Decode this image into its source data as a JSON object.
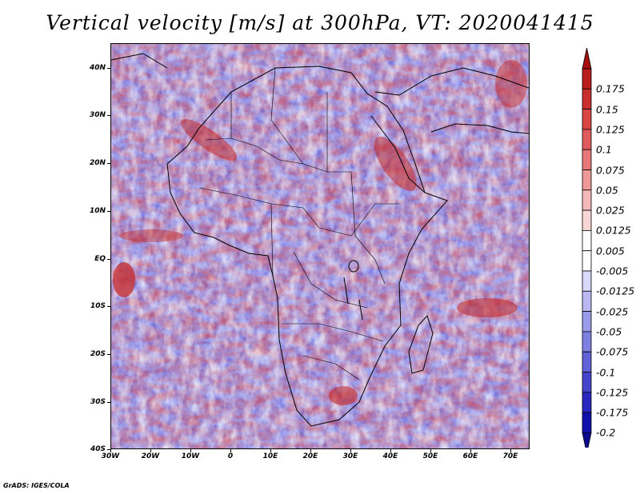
{
  "title": "Vertical velocity [m/s] at 300hPa, VT: 2020041415",
  "map": {
    "lat_labels": [
      "40N",
      "30N",
      "20N",
      "10N",
      "EQ",
      "10S",
      "20S",
      "30S",
      "40S"
    ],
    "lon_labels": [
      "30W",
      "20W",
      "10W",
      "0",
      "10E",
      "20E",
      "30E",
      "40E",
      "50E",
      "60E",
      "70E"
    ],
    "lon_range": [
      -30,
      75
    ],
    "lat_range": [
      -40,
      45
    ]
  },
  "colorbar": {
    "labels": [
      "0.175",
      "0.15",
      "0.125",
      "0.1",
      "0.075",
      "0.05",
      "0.025",
      "0.0125",
      "0.005",
      "-0.005",
      "-0.0125",
      "-0.025",
      "-0.05",
      "-0.075",
      "-0.1",
      "-0.125",
      "-0.175",
      "-0.2"
    ],
    "colors": [
      "#b81c1c",
      "#c92e2e",
      "#d84545",
      "#e05c5c",
      "#e87878",
      "#ef9898",
      "#f5b8b8",
      "#f9d6d6",
      "#ffffff",
      "#ffffff",
      "#d8d8fa",
      "#b9b9f2",
      "#9a9aea",
      "#7f7fe2",
      "#6262d8",
      "#4545cc",
      "#2828bf",
      "#1010ac"
    ],
    "top_color": "#a51010",
    "bottom_color": "#0a0a90"
  },
  "footer": "GrADS: IGES/COLA"
}
